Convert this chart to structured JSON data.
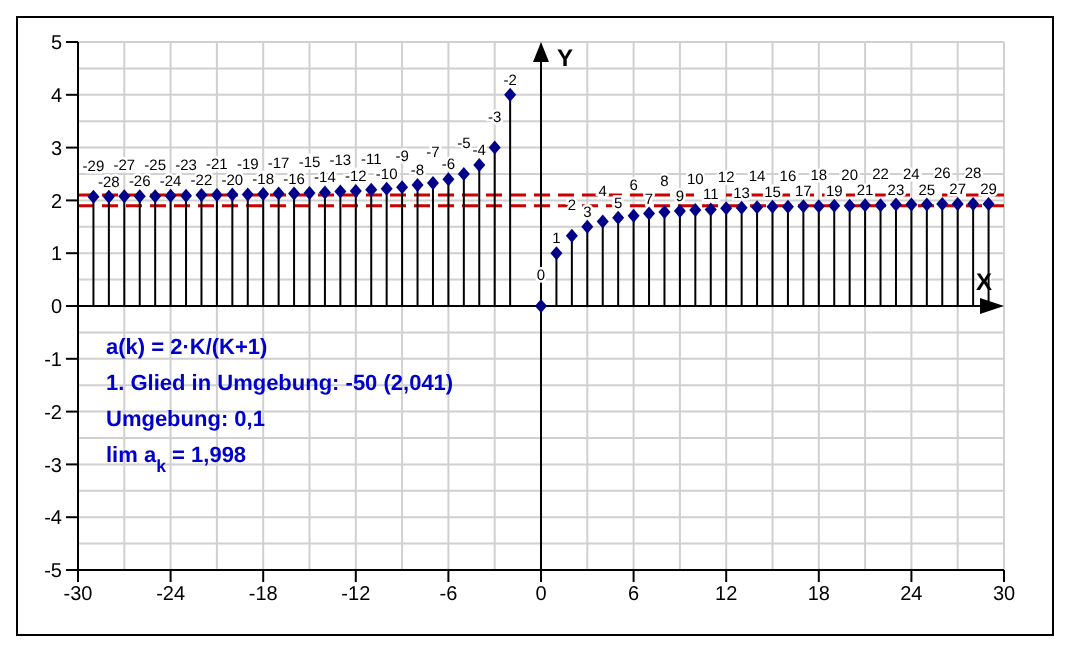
{
  "chart_data": {
    "type": "lollipop",
    "xlabel": "X",
    "ylabel": "Y",
    "x": [
      -29,
      -28,
      -27,
      -26,
      -25,
      -24,
      -23,
      -22,
      -21,
      -20,
      -19,
      -18,
      -17,
      -16,
      -15,
      -14,
      -13,
      -12,
      -11,
      -10,
      -9,
      -8,
      -7,
      -6,
      -5,
      -4,
      -3,
      -2,
      0,
      1,
      2,
      3,
      4,
      5,
      6,
      7,
      8,
      9,
      10,
      11,
      12,
      13,
      14,
      15,
      16,
      17,
      18,
      19,
      20,
      21,
      22,
      23,
      24,
      25,
      26,
      27,
      28,
      29
    ],
    "values": [
      2.07,
      2.07,
      2.08,
      2.08,
      2.08,
      2.09,
      2.09,
      2.1,
      2.1,
      2.11,
      2.11,
      2.12,
      2.13,
      2.13,
      2.14,
      2.15,
      2.17,
      2.18,
      2.2,
      2.22,
      2.25,
      2.29,
      2.33,
      2.4,
      2.5,
      2.67,
      3,
      4,
      0,
      1,
      1.33,
      1.5,
      1.6,
      1.67,
      1.71,
      1.75,
      1.78,
      1.8,
      1.82,
      1.83,
      1.85,
      1.86,
      1.87,
      1.88,
      1.88,
      1.89,
      1.89,
      1.9,
      1.9,
      1.91,
      1.91,
      1.92,
      1.92,
      1.92,
      1.93,
      1.93,
      1.93,
      1.93
    ],
    "color": "#00008b",
    "marker": "diamond",
    "xlim": [
      -30,
      30
    ],
    "xticks": [
      -30,
      -24,
      -18,
      -12,
      -6,
      0,
      6,
      12,
      18,
      24,
      30
    ],
    "ylim": [
      -5,
      5
    ],
    "yticks": [
      -5,
      -4,
      -3,
      -2,
      -1,
      0,
      1,
      2,
      3,
      4,
      5
    ],
    "grid": true,
    "ref_lines": [
      {
        "axis": "y",
        "value": 2.1,
        "color": "#cc0000",
        "line_style": "dashed"
      },
      {
        "axis": "y",
        "value": 1.9,
        "color": "#cc0000",
        "line_style": "dashed"
      }
    ],
    "annotations": [
      "a(k) = 2·K/(K+1)",
      "1. Glied in Umgebung: -50  (2,041)",
      "Umgebung: 0,1",
      "lim a$_{k}$ = 1,998",
      {
        "text": "-29",
        "x": -29,
        "y": 2.07
      },
      {
        "text": "-28",
        "x": -28,
        "y": 2.07
      },
      {
        "text": "-27",
        "x": -27,
        "y": 2.08
      },
      {
        "text": "-26",
        "x": -26,
        "y": 2.08
      },
      {
        "text": "-25",
        "x": -25,
        "y": 2.08
      },
      {
        "text": "-24",
        "x": -24,
        "y": 2.09
      },
      {
        "text": "-23",
        "x": -23,
        "y": 2.09
      },
      {
        "text": "-22",
        "x": -22,
        "y": 2.1
      },
      {
        "text": "-21",
        "x": -21,
        "y": 2.1
      },
      {
        "text": "-20",
        "x": -20,
        "y": 2.11
      },
      {
        "text": "-19",
        "x": -19,
        "y": 2.11
      },
      {
        "text": "-18",
        "x": -18,
        "y": 2.12
      },
      {
        "text": "-17",
        "x": -17,
        "y": 2.13
      },
      {
        "text": "-16",
        "x": -16,
        "y": 2.13
      },
      {
        "text": "-15",
        "x": -15,
        "y": 2.14
      },
      {
        "text": "-14",
        "x": -14,
        "y": 2.15
      },
      {
        "text": "-13",
        "x": -13,
        "y": 2.17
      },
      {
        "text": "-12",
        "x": -12,
        "y": 2.18
      },
      {
        "text": "-11",
        "x": -11,
        "y": 2.2
      },
      {
        "text": "-10",
        "x": -10,
        "y": 2.22
      },
      {
        "text": "-9",
        "x": -9,
        "y": 2.25
      },
      {
        "text": "-8",
        "x": -8,
        "y": 2.29
      },
      {
        "text": "-7",
        "x": -7,
        "y": 2.33
      },
      {
        "text": "-6",
        "x": -6,
        "y": 2.4
      },
      {
        "text": "-5",
        "x": -5,
        "y": 2.5
      },
      {
        "text": "-4",
        "x": -4,
        "y": 2.67
      },
      {
        "text": "-3",
        "x": -3,
        "y": 3
      },
      {
        "text": "-2",
        "x": -2,
        "y": 4
      },
      {
        "text": "0",
        "x": 0,
        "y": 0
      },
      {
        "text": "1",
        "x": 1,
        "y": 1
      },
      {
        "text": "2",
        "x": 2,
        "y": 1.33
      },
      {
        "text": "3",
        "x": 3,
        "y": 1.5
      },
      {
        "text": "4",
        "x": 4,
        "y": 1.6
      },
      {
        "text": "5",
        "x": 5,
        "y": 1.67
      },
      {
        "text": "6",
        "x": 6,
        "y": 1.71
      },
      {
        "text": "7",
        "x": 7,
        "y": 1.75
      },
      {
        "text": "8",
        "x": 8,
        "y": 1.78
      },
      {
        "text": "9",
        "x": 9,
        "y": 1.8
      },
      {
        "text": "10",
        "x": 10,
        "y": 1.82
      },
      {
        "text": "11",
        "x": 11,
        "y": 1.83
      },
      {
        "text": "12",
        "x": 12,
        "y": 1.85
      },
      {
        "text": "13",
        "x": 13,
        "y": 1.86
      },
      {
        "text": "14",
        "x": 14,
        "y": 1.87
      },
      {
        "text": "15",
        "x": 15,
        "y": 1.88
      },
      {
        "text": "16",
        "x": 16,
        "y": 1.88
      },
      {
        "text": "17",
        "x": 17,
        "y": 1.89
      },
      {
        "text": "18",
        "x": 18,
        "y": 1.89
      },
      {
        "text": "19",
        "x": 19,
        "y": 1.9
      },
      {
        "text": "20",
        "x": 20,
        "y": 1.9
      },
      {
        "text": "21",
        "x": 21,
        "y": 1.91
      },
      {
        "text": "22",
        "x": 22,
        "y": 1.91
      },
      {
        "text": "23",
        "x": 23,
        "y": 1.92
      },
      {
        "text": "24",
        "x": 24,
        "y": 1.92
      },
      {
        "text": "25",
        "x": 25,
        "y": 1.92
      },
      {
        "text": "26",
        "x": 26,
        "y": 1.93
      },
      {
        "text": "27",
        "x": 27,
        "y": 1.93
      },
      {
        "text": "28",
        "x": 28,
        "y": 1.93
      },
      {
        "text": "29",
        "x": 29,
        "y": 1.93
      }
    ]
  }
}
